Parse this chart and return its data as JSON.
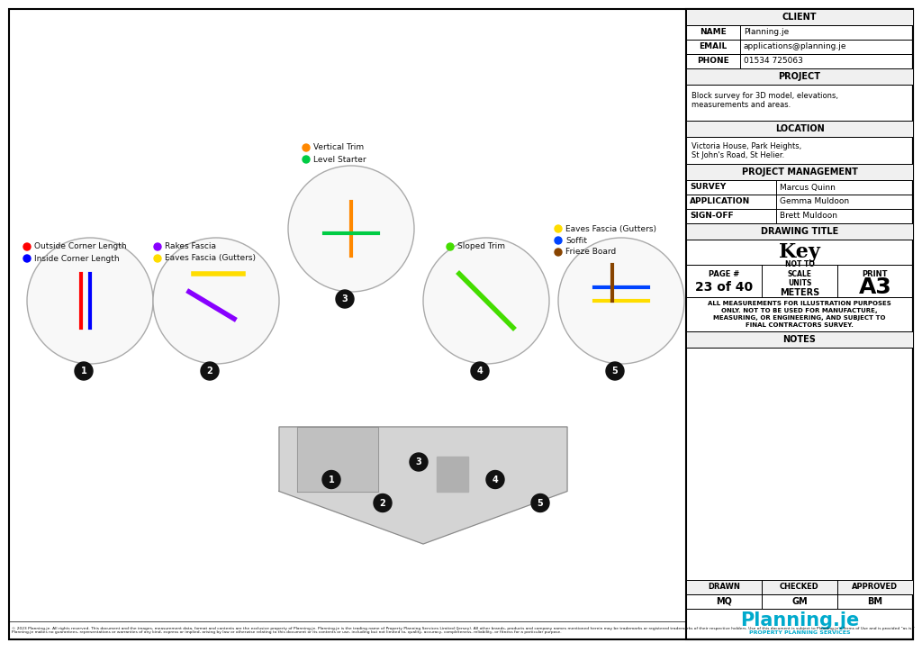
{
  "page_bg": "#ffffff",
  "border_color": "#000000",
  "client_name": "Planning.je",
  "client_email": "applications@planning.je",
  "client_phone": "01534 725063",
  "project_desc": "Block survey for 3D model, elevations,\nmeasurements and areas.",
  "location": "Victoria House, Park Heights,\nSt John's Road, St Helier.",
  "survey": "Marcus Quinn",
  "application": "Gemma Muldoon",
  "signoff": "Brett Muldoon",
  "drawing_title": "Key",
  "page_num": "23 of 40",
  "units": "METERS",
  "print_size": "A3",
  "drawn": "MQ",
  "checked": "GM",
  "approved": "BM",
  "disclaimer": "ALL MEASUREMENTS FOR ILLUSTRATION PURPOSES\nONLY. NOT TO BE USED FOR MANUFACTURE,\nMEASURING, OR ENGINEERING, AND SUBJECT TO\nFINAL CONTRACTORS SURVEY.",
  "footer_text": "© 2023 Planning.je. All rights reserved. This document and the images, measurement data, format and contents are the exclusive property of Planning.je. Planning.je is the trading name of Property Planning Services Limited (Jersey). All other brands, products and company names mentioned herein may be trademarks or registered trademarks of their respective holders. Use of this document is subject to Planning.je’s Terms of Use and is provided \"as is.\" Planning.je makes no guarantees, representations or warranties of any kind, express or implied, arising by law or otherwise relating to this document or its contents or use, including but not limited to, quality, accuracy, completeness, reliability, or fitness for a particular purpose.",
  "planning_je_color": "#00aacc",
  "legend_items": [
    {
      "label": "Outside Corner Length",
      "color": "#ff0000"
    },
    {
      "label": "Inside Corner Length",
      "color": "#0000ff"
    },
    {
      "label": "Rakes Fascia",
      "color": "#8800ff"
    },
    {
      "label": "Eaves Fascia (Gutters)",
      "color": "#ffdd00"
    },
    {
      "label": "Vertical Trim",
      "color": "#ff8800"
    },
    {
      "label": "Level Starter",
      "color": "#00cc44"
    },
    {
      "label": "Sloped Trim",
      "color": "#44dd00"
    },
    {
      "label": "Eaves Fascia (Gutters)",
      "color": "#ffdd00"
    },
    {
      "label": "Soffit",
      "color": "#0044ff"
    },
    {
      "label": "Frieze Board",
      "color": "#884400"
    }
  ]
}
